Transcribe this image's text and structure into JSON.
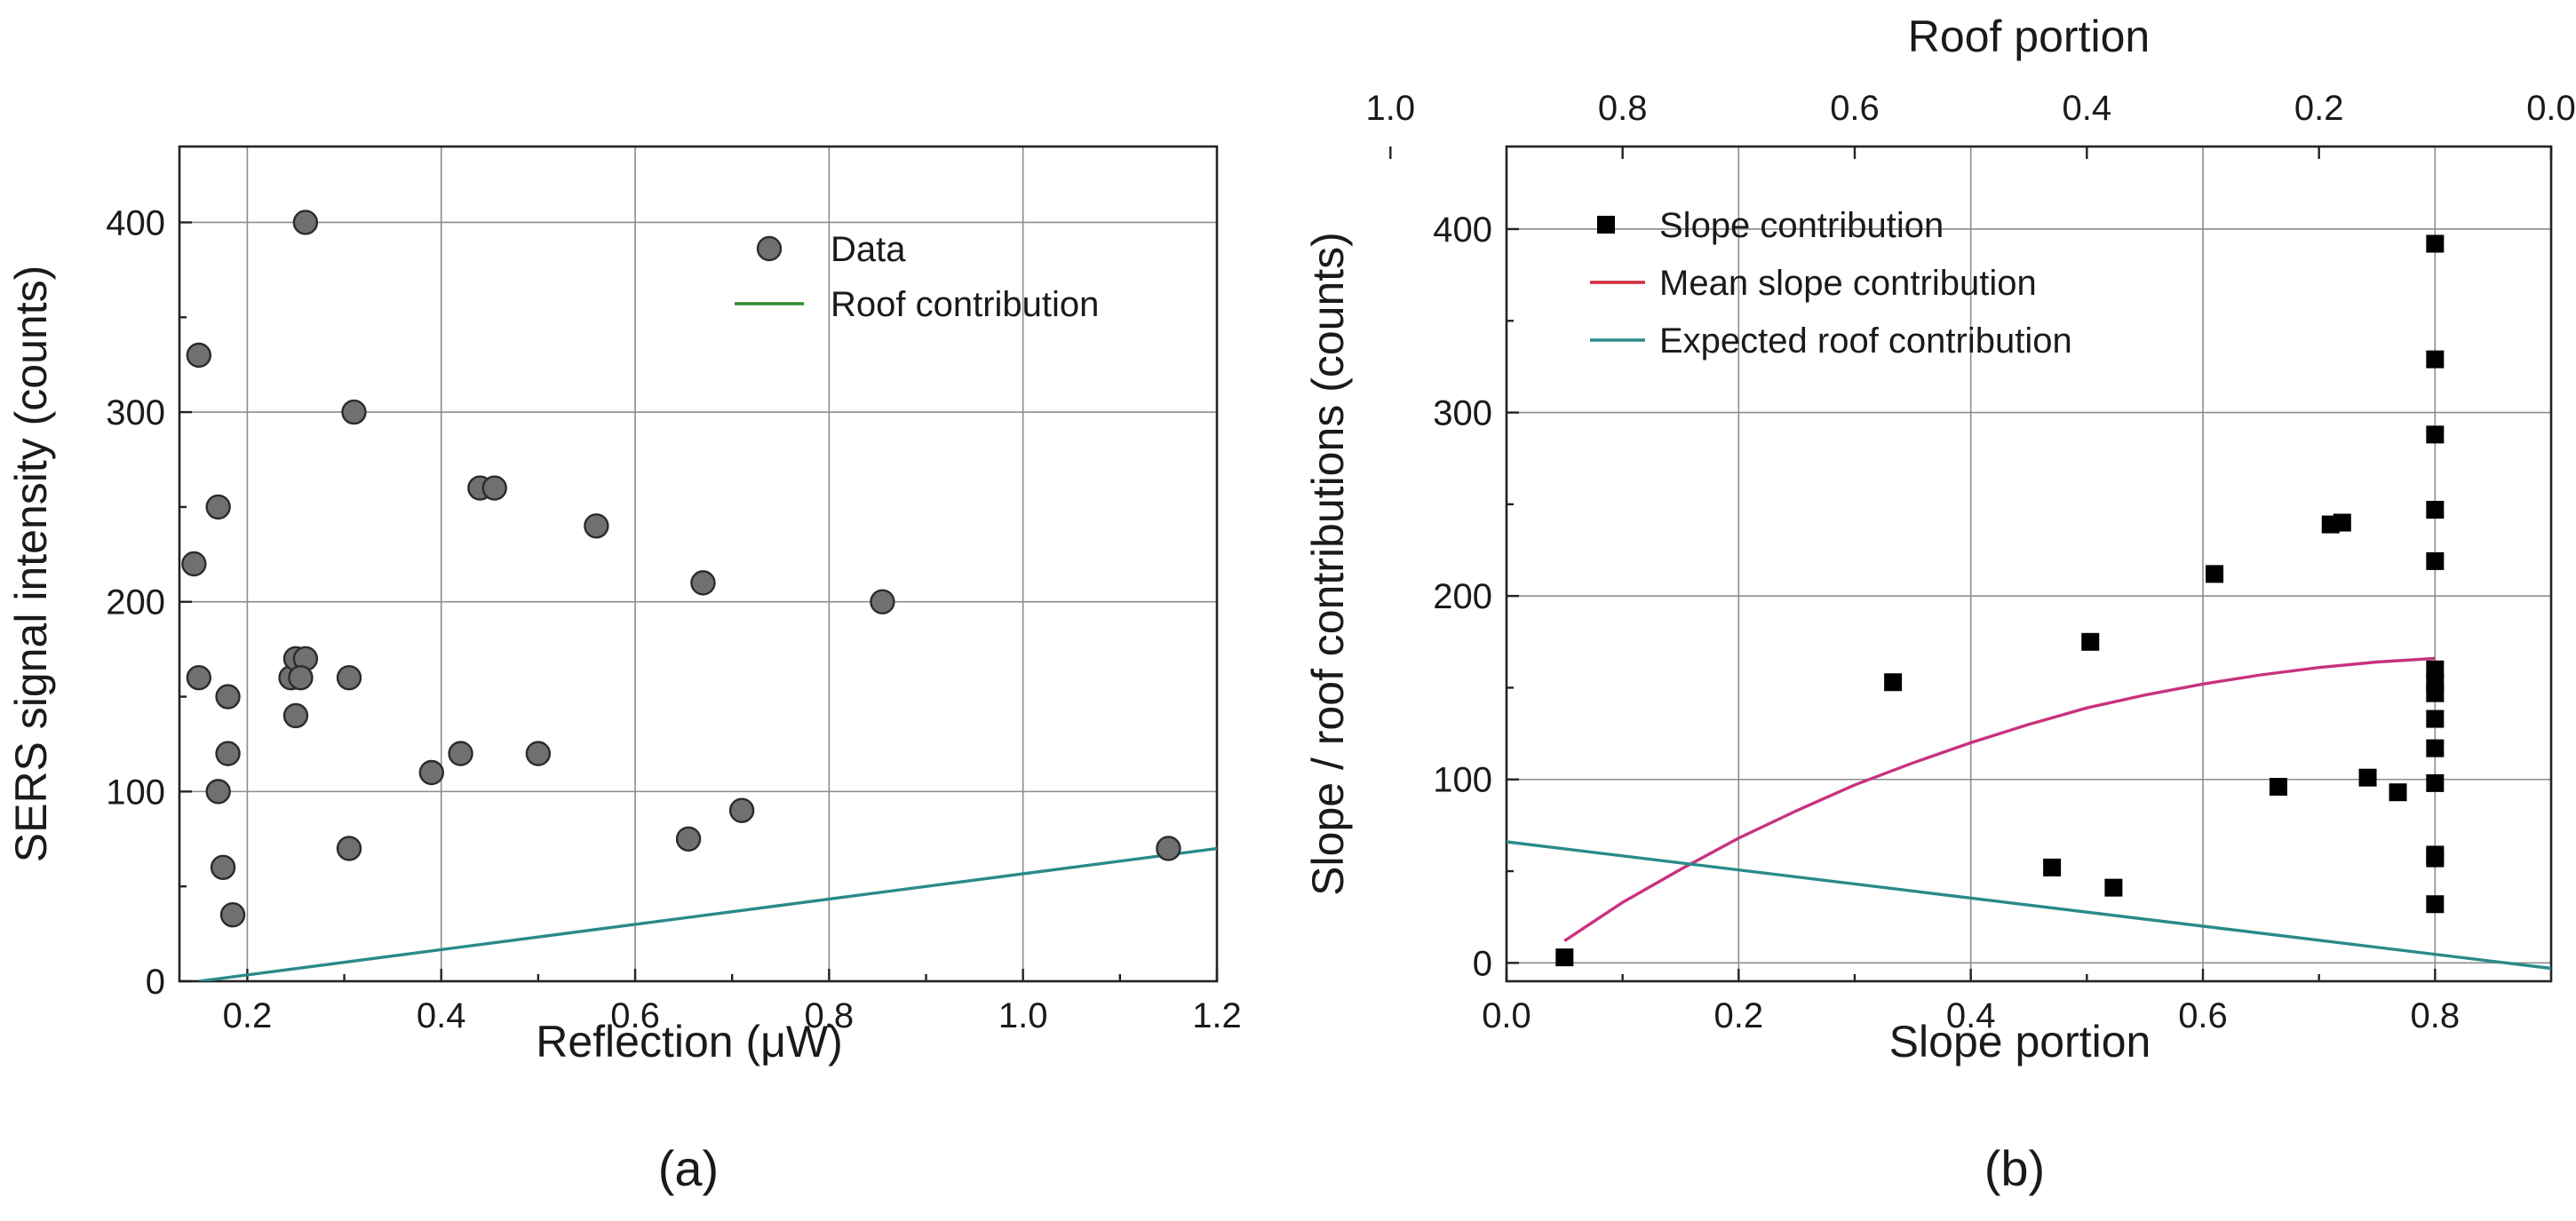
{
  "chart_data": [
    {
      "type": "scatter",
      "panel_label": "(a)",
      "title": "",
      "xlabel": "Reflection (μW)",
      "ylabel": "SERS signal intensity (counts)",
      "xlim": [
        0.13,
        1.2
      ],
      "ylim": [
        0,
        440
      ],
      "x_ticks": [
        0.2,
        0.4,
        0.6,
        0.8,
        1.0,
        1.2
      ],
      "x_tick_labels": [
        "0.2",
        "0.4",
        "0.6",
        "0.8",
        "1.0",
        "1.2"
      ],
      "y_ticks": [
        0,
        100,
        200,
        300,
        400
      ],
      "y_tick_labels": [
        "0",
        "100",
        "200",
        "300",
        "400"
      ],
      "grid": true,
      "legend_position": "top-right",
      "series": [
        {
          "name": "Data",
          "kind": "points",
          "color": "#707070",
          "points": [
            [
              0.26,
              400
            ],
            [
              0.15,
              330
            ],
            [
              0.31,
              300
            ],
            [
              0.17,
              250
            ],
            [
              0.145,
              220
            ],
            [
              0.44,
              260
            ],
            [
              0.455,
              260
            ],
            [
              0.56,
              240
            ],
            [
              0.67,
              210
            ],
            [
              0.855,
              200
            ],
            [
              0.15,
              160
            ],
            [
              0.245,
              160
            ],
            [
              0.25,
              170
            ],
            [
              0.26,
              170
            ],
            [
              0.255,
              160
            ],
            [
              0.305,
              160
            ],
            [
              0.18,
              150
            ],
            [
              0.25,
              140
            ],
            [
              0.18,
              120
            ],
            [
              0.42,
              120
            ],
            [
              0.5,
              120
            ],
            [
              0.39,
              110
            ],
            [
              0.17,
              100
            ],
            [
              0.71,
              90
            ],
            [
              0.655,
              75
            ],
            [
              0.305,
              70
            ],
            [
              1.15,
              70
            ],
            [
              0.175,
              60
            ],
            [
              0.185,
              35
            ]
          ]
        },
        {
          "name": "Roof contribution",
          "kind": "line",
          "color": "#2a8a8a",
          "legend_color": "#2e8b2e",
          "points": [
            [
              0.15,
              0
            ],
            [
              1.2,
              70
            ]
          ]
        }
      ]
    },
    {
      "type": "scatter",
      "panel_label": "(b)",
      "title": "",
      "xlabel": "Slope portion",
      "x2label": "Roof portion",
      "ylabel": "Slope / roof contributions (counts)",
      "xlim": [
        0.0,
        0.9
      ],
      "ylim": [
        -10,
        445
      ],
      "x_ticks": [
        0.0,
        0.2,
        0.4,
        0.6,
        0.8
      ],
      "x_tick_labels": [
        "0.0",
        "0.2",
        "0.4",
        "0.6",
        "0.8"
      ],
      "x2_ticks": [
        1.0,
        0.8,
        0.6,
        0.4,
        0.2,
        0.0
      ],
      "x2_tick_labels": [
        "1.0",
        "0.8",
        "0.6",
        "0.4",
        "0.2",
        "0.0"
      ],
      "x2_relation": "roof portion = 0.9 − slope portion",
      "y_ticks": [
        0,
        100,
        200,
        300,
        400
      ],
      "y_tick_labels": [
        "0",
        "100",
        "200",
        "300",
        "400"
      ],
      "grid": true,
      "legend_position": "top-left",
      "series": [
        {
          "name": "Slope contribution",
          "kind": "squares",
          "color": "#000000",
          "points": [
            [
              0.05,
              3
            ],
            [
              0.333,
              153
            ],
            [
              0.47,
              52
            ],
            [
              0.503,
              175
            ],
            [
              0.523,
              41
            ],
            [
              0.61,
              212
            ],
            [
              0.665,
              96
            ],
            [
              0.71,
              239
            ],
            [
              0.72,
              240
            ],
            [
              0.742,
              101
            ],
            [
              0.768,
              93
            ],
            [
              0.8,
              392
            ],
            [
              0.8,
              329
            ],
            [
              0.8,
              288
            ],
            [
              0.8,
              247
            ],
            [
              0.8,
              219
            ],
            [
              0.8,
              160
            ],
            [
              0.8,
              153
            ],
            [
              0.8,
              147
            ],
            [
              0.8,
              133
            ],
            [
              0.8,
              117
            ],
            [
              0.8,
              98
            ],
            [
              0.8,
              59
            ],
            [
              0.8,
              57
            ],
            [
              0.8,
              32
            ]
          ]
        },
        {
          "name": "Mean slope contribution",
          "kind": "curve",
          "color": "#c8327d",
          "legend_color": "#d22a3c",
          "points": [
            [
              0.05,
              12
            ],
            [
              0.1,
              33
            ],
            [
              0.15,
              51
            ],
            [
              0.2,
              68
            ],
            [
              0.25,
              83
            ],
            [
              0.3,
              97
            ],
            [
              0.35,
              109
            ],
            [
              0.4,
              120
            ],
            [
              0.45,
              130
            ],
            [
              0.5,
              139
            ],
            [
              0.55,
              146
            ],
            [
              0.6,
              152
            ],
            [
              0.65,
              157
            ],
            [
              0.7,
              161
            ],
            [
              0.75,
              164
            ],
            [
              0.8,
              166
            ]
          ]
        },
        {
          "name": "Expected roof contribution",
          "kind": "line",
          "color": "#2a8a8a",
          "points": [
            [
              0.0,
              66
            ],
            [
              0.9,
              -3
            ]
          ]
        }
      ]
    }
  ]
}
